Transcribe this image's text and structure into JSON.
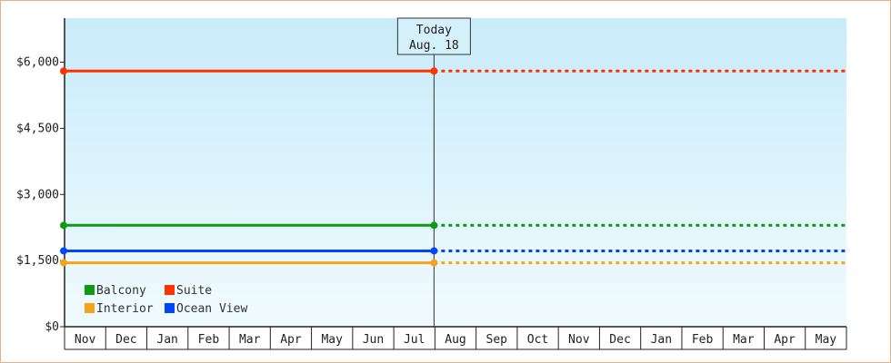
{
  "chart_data": {
    "type": "line",
    "y_ticks": [
      "$0",
      "$1,500",
      "$3,000",
      "$4,500",
      "$6,000"
    ],
    "y_tick_values": [
      0,
      1500,
      3000,
      4500,
      6000
    ],
    "ylim": [
      0,
      7000
    ],
    "categories": [
      "Nov",
      "Dec",
      "Jan",
      "Feb",
      "Mar",
      "Apr",
      "May",
      "Jun",
      "Jul",
      "Aug",
      "Sep",
      "Oct",
      "Nov",
      "Dec",
      "Jan",
      "Feb",
      "Mar",
      "Apr",
      "May"
    ],
    "today_marker": {
      "line1": "Today",
      "line2": "Aug. 18",
      "category_index": 9
    },
    "series": [
      {
        "name": "Suite",
        "color": "#ff3300",
        "value": 5800,
        "start_index": 0,
        "end_index": 9,
        "style_after": "dotted"
      },
      {
        "name": "Balcony",
        "color": "#119911",
        "value": 2300,
        "start_index": 0,
        "end_index": 9,
        "style_after": "dotted"
      },
      {
        "name": "Ocean View",
        "color": "#0044ff",
        "value": 1720,
        "start_index": 0,
        "end_index": 9,
        "style_after": "dotted"
      },
      {
        "name": "Interior",
        "color": "#f5a31a",
        "value": 1450,
        "start_index": 0,
        "end_index": 9,
        "style_after": "dotted"
      }
    ],
    "legend": [
      {
        "name": "Balcony",
        "color": "#119911"
      },
      {
        "name": "Suite",
        "color": "#ff3300"
      },
      {
        "name": "Interior",
        "color": "#f5a31a"
      },
      {
        "name": "Ocean View",
        "color": "#0044ff"
      }
    ],
    "legend_position": "bottom-left",
    "grid": false
  }
}
